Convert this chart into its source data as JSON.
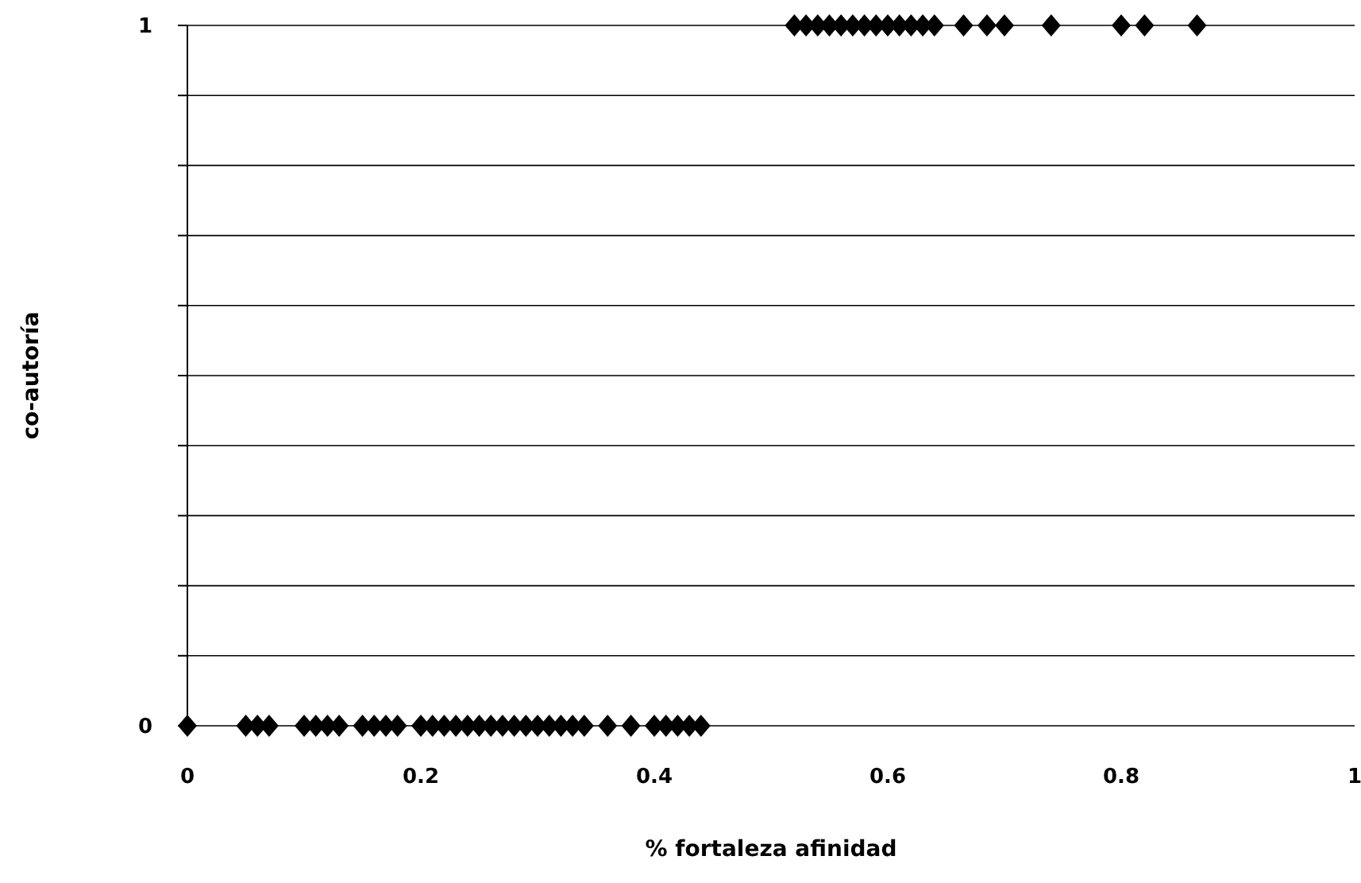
{
  "chart_data": {
    "type": "scatter",
    "xlabel": "% fortaleza afinidad",
    "ylabel": "co-autoría",
    "marker": "diamond",
    "grid": "y",
    "xlim": [
      0,
      1
    ],
    "xticks": [
      0,
      0.2,
      0.4,
      0.6,
      0.8,
      1
    ],
    "ylim": [
      0,
      1
    ],
    "yticks": [
      0,
      {
        "value": 0.1,
        "label": null
      },
      {
        "value": 0.2,
        "label": null
      },
      {
        "value": 0.3,
        "label": null
      },
      {
        "value": 0.4,
        "label": null
      },
      {
        "value": 0.5,
        "label": null
      },
      {
        "value": 0.6,
        "label": null
      },
      {
        "value": 0.7,
        "label": null
      },
      {
        "value": 0.8,
        "label": null
      },
      {
        "value": 0.9,
        "label": null
      },
      1
    ],
    "series": [
      {
        "color": "#000000",
        "x": [
          0,
          0.05,
          0.06,
          0.07,
          0.1,
          0.11,
          0.12,
          0.13,
          0.15,
          0.16,
          0.17,
          0.18,
          0.2,
          0.21,
          0.22,
          0.23,
          0.24,
          0.25,
          0.26,
          0.27,
          0.28,
          0.29,
          0.3,
          0.31,
          0.32,
          0.33,
          0.34,
          0.36,
          0.38,
          0.4,
          0.41,
          0.42,
          0.43,
          0.44,
          0.52,
          0.53,
          0.54,
          0.55,
          0.56,
          0.57,
          0.58,
          0.59,
          0.6,
          0.61,
          0.62,
          0.63,
          0.64,
          0.665,
          0.685,
          0.7,
          0.74,
          0.8,
          0.82,
          0.865
        ],
        "values": [
          0,
          0,
          0,
          0,
          0,
          0,
          0,
          0,
          0,
          0,
          0,
          0,
          0,
          0,
          0,
          0,
          0,
          0,
          0,
          0,
          0,
          0,
          0,
          0,
          0,
          0,
          0,
          0,
          0,
          0,
          0,
          0,
          0,
          0,
          1,
          1,
          1,
          1,
          1,
          1,
          1,
          1,
          1,
          1,
          1,
          1,
          1,
          1,
          1,
          1,
          1,
          1,
          1,
          1
        ]
      }
    ]
  }
}
